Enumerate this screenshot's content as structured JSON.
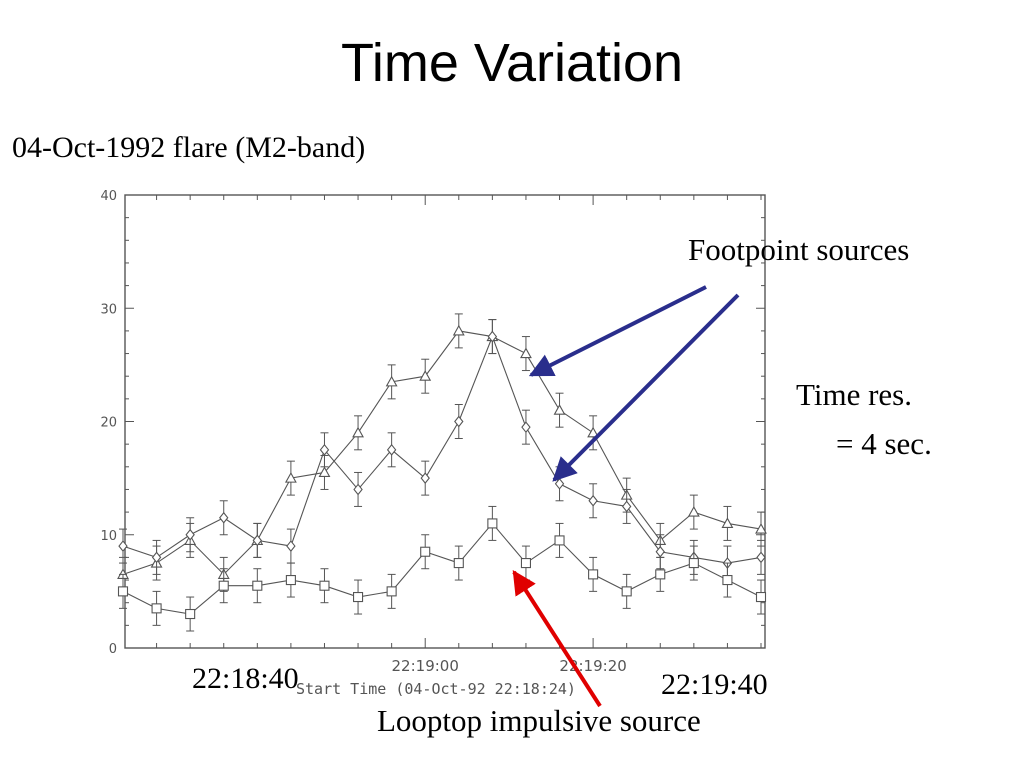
{
  "slide": {
    "title": "Time Variation",
    "subtitle": "04-Oct-1992 flare (M2-band)"
  },
  "annotations": {
    "footpoint": "Footpoint sources",
    "time_res_line1": "Time res.",
    "time_res_line2": "= 4 sec.",
    "looptop": "Looptop impulsive source",
    "time_left": "22:18:40",
    "time_right": "22:19:40"
  },
  "colors": {
    "footpoint_arrow": "#2a2e8c",
    "looptop_arrow": "#e00000",
    "plot_ink": "#555555"
  },
  "chart_data": {
    "type": "line",
    "x_unit": "seconds after 22:18:24",
    "xlabel": "Start Time (04-Oct-92 22:18:24)",
    "xlim": [
      0,
      76
    ],
    "ylim": [
      0,
      40
    ],
    "yticks": [
      0,
      10,
      20,
      30,
      40
    ],
    "xticks_major": [
      {
        "x": 36,
        "label": "22:19:00"
      },
      {
        "x": 56,
        "label": "22:19:20"
      }
    ],
    "grid": false,
    "series": [
      {
        "marker": "triangle",
        "x": [
          0,
          4,
          8,
          12,
          16,
          20,
          24,
          28,
          32,
          36,
          40,
          44,
          48,
          52,
          56,
          60,
          64,
          68,
          72,
          76
        ],
        "values": [
          6.5,
          7.5,
          9.5,
          6.5,
          9.5,
          15,
          15.5,
          19,
          23.5,
          24,
          28,
          27.5,
          26,
          21,
          19,
          13.5,
          9.5,
          12,
          11,
          10.5
        ],
        "error": 1.5
      },
      {
        "marker": "diamond",
        "x": [
          0,
          4,
          8,
          12,
          16,
          20,
          24,
          28,
          32,
          36,
          40,
          44,
          48,
          52,
          56,
          60,
          64,
          68,
          72,
          76
        ],
        "values": [
          9,
          8,
          10,
          11.5,
          9.5,
          9,
          17.5,
          14,
          17.5,
          15,
          20,
          27.5,
          19.5,
          14.5,
          13,
          12.5,
          8.5,
          8,
          7.5,
          8
        ],
        "error": 1.5
      },
      {
        "marker": "square",
        "x": [
          0,
          4,
          8,
          12,
          16,
          20,
          24,
          28,
          32,
          36,
          40,
          44,
          48,
          52,
          56,
          60,
          64,
          68,
          72,
          76
        ],
        "values": [
          5,
          3.5,
          3,
          5.5,
          5.5,
          6,
          5.5,
          4.5,
          5,
          8.5,
          7.5,
          11,
          7.5,
          9.5,
          6.5,
          5,
          6.5,
          7.5,
          6,
          4.5
        ],
        "error": 1.5
      }
    ]
  }
}
